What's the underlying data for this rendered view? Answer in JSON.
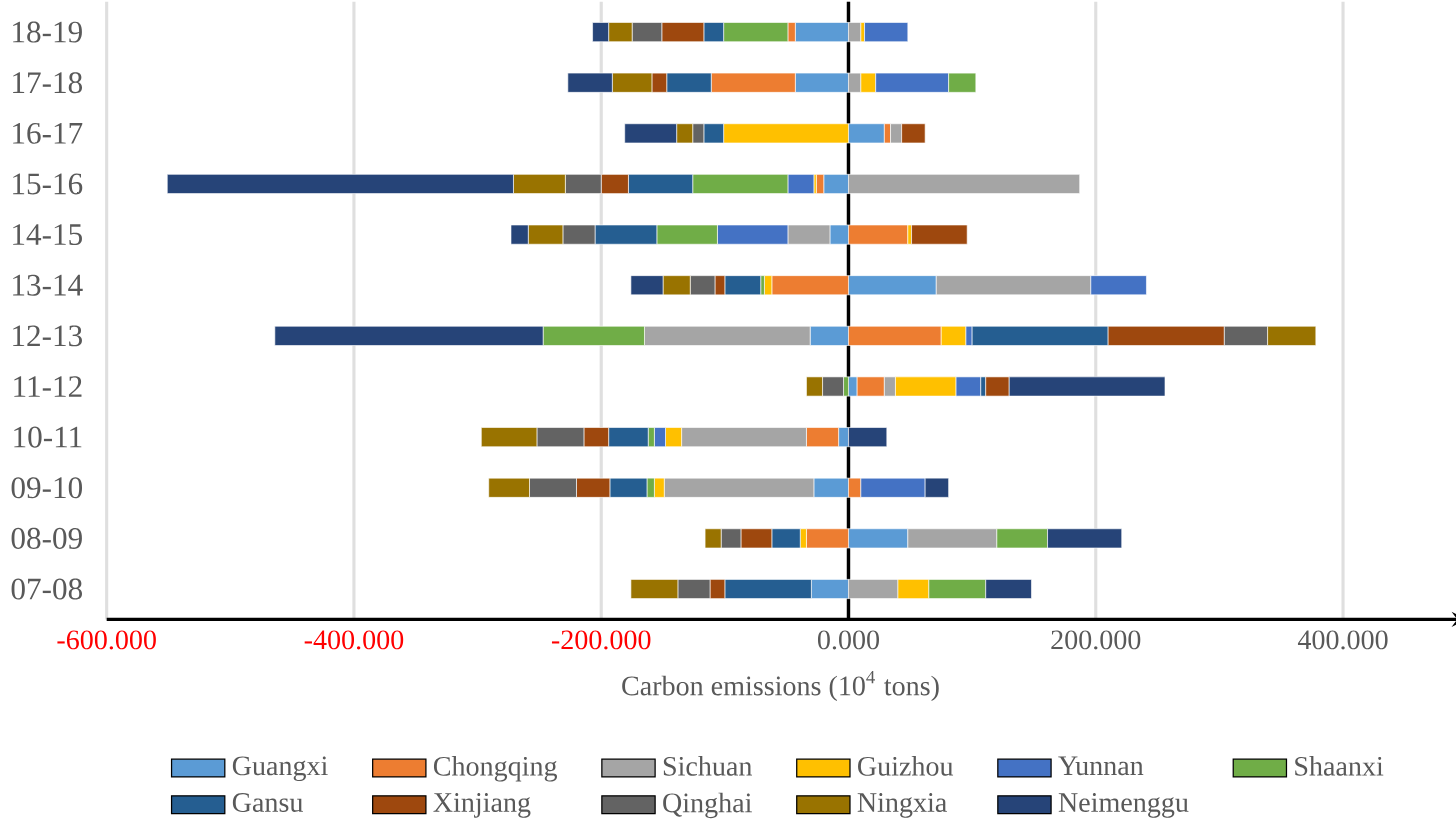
{
  "chart_data": {
    "type": "bar",
    "orientation": "horizontal",
    "stacked": true,
    "categories": [
      "18-19",
      "17-18",
      "16-17",
      "15-16",
      "14-15",
      "13-14",
      "12-13",
      "11-12",
      "10-11",
      "09-10",
      "08-09",
      "07-08"
    ],
    "series": [
      {
        "name": "Guangxi",
        "color": "#5b9bd5",
        "values": [
          -43,
          -43,
          29,
          -20,
          -15,
          71,
          -31,
          7,
          -8,
          -28,
          48,
          -30
        ]
      },
      {
        "name": "Chongqing",
        "color": "#ed7d31",
        "values": [
          -6,
          -68,
          5,
          -6,
          48,
          -62,
          75,
          22,
          -26,
          10,
          -34,
          0
        ]
      },
      {
        "name": "Sichuan",
        "color": "#a5a5a5",
        "values": [
          10,
          10,
          9,
          187,
          -34,
          125,
          -134,
          9,
          -101,
          -121,
          72,
          40
        ]
      },
      {
        "name": "Guizhou",
        "color": "#ffc000",
        "values": [
          3,
          12,
          -101,
          -2,
          3,
          -6,
          20,
          49,
          -13,
          -8,
          -5,
          25
        ]
      },
      {
        "name": "Yunnan",
        "color": "#4472c4",
        "values": [
          35,
          59,
          0,
          -21,
          -57,
          45,
          5,
          20,
          -9,
          52,
          0,
          0
        ]
      },
      {
        "name": "Shaanxi",
        "color": "#70ad47",
        "values": [
          -52,
          22,
          0,
          -77,
          -49,
          -3,
          -82,
          -4,
          -5,
          -6,
          41,
          46
        ]
      },
      {
        "name": "Gansu",
        "color": "#255e91",
        "values": [
          -16,
          -36,
          -16,
          -52,
          -50,
          -29,
          110,
          4,
          -32,
          -30,
          -23,
          -70
        ]
      },
      {
        "name": "Xinjiang",
        "color": "#9e480e",
        "values": [
          -34,
          -12,
          19,
          -22,
          45,
          -8,
          94,
          19,
          -20,
          -27,
          -25,
          -12
        ]
      },
      {
        "name": "Qinghai",
        "color": "#636363",
        "values": [
          -24,
          0,
          -9,
          -29,
          -26,
          -20,
          35,
          -17,
          -38,
          -38,
          -16,
          -26
        ]
      },
      {
        "name": "Ningxia",
        "color": "#997300",
        "values": [
          -19,
          -32,
          -13,
          -42,
          -28,
          -22,
          39,
          -13,
          -45,
          -33,
          -13,
          -38
        ]
      },
      {
        "name": "Neimenggu",
        "color": "#264478",
        "values": [
          -13,
          -36,
          -42,
          -280,
          -14,
          -26,
          -217,
          126,
          31,
          19,
          60,
          37
        ]
      }
    ],
    "xlabel": "Carbon emissions (10$^{4}$ tons)",
    "xlim": [
      -600,
      490
    ],
    "xticks": [
      {
        "value": -600,
        "label": "-600.000"
      },
      {
        "value": -400,
        "label": "-400.000"
      },
      {
        "value": -200,
        "label": "-200.000"
      },
      {
        "value": 0,
        "label": "0.000"
      },
      {
        "value": 200,
        "label": "200.000"
      },
      {
        "value": 400,
        "label": "400.000"
      }
    ],
    "grid": "x",
    "legend": "bottom"
  }
}
